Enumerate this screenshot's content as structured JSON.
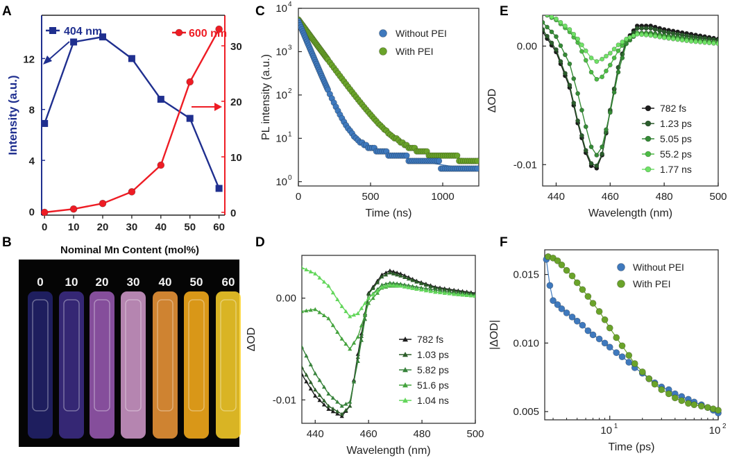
{
  "panel_labels": {
    "A": "A",
    "B": "B",
    "C": "C",
    "D": "D",
    "E": "E",
    "F": "F"
  },
  "photo": {
    "title": "Nominal Mn Content (mol%)",
    "vials": [
      {
        "label": "0",
        "color": "#23236e"
      },
      {
        "label": "10",
        "color": "#3e2e88"
      },
      {
        "label": "20",
        "color": "#9c5cb6"
      },
      {
        "label": "30",
        "color": "#d59ccf"
      },
      {
        "label": "40",
        "color": "#f39a3a"
      },
      {
        "label": "50",
        "color": "#ffb21c"
      },
      {
        "label": "60",
        "color": "#ffd32a"
      }
    ]
  },
  "colors": {
    "blue": "#1f2f8f",
    "red": "#ee1c24",
    "sky": "#3f79bd",
    "green": "#6aa32a",
    "frame": "#333333"
  },
  "chart_data": [
    {
      "id": "A",
      "type": "line",
      "xlabel": "Nominal Mn Content (mol%)",
      "ylabel": "Intensity (a.u.)",
      "xlim": [
        -1,
        62
      ],
      "ylim": [
        -0.3,
        15.4
      ],
      "y2lim": [
        -0.5,
        35.5
      ],
      "xticks": [
        0,
        10,
        20,
        30,
        40,
        50,
        60
      ],
      "yticks": [
        0,
        4,
        8,
        12
      ],
      "y2ticks": [
        0,
        10,
        20,
        30
      ],
      "series": [
        {
          "name": "404 nm",
          "axis": "left",
          "color": "#1f2f8f",
          "marker": "square",
          "x": [
            0,
            10,
            20,
            30,
            40,
            50,
            60
          ],
          "values": [
            6.9,
            13.3,
            13.7,
            12.0,
            8.8,
            7.3,
            1.8
          ]
        },
        {
          "name": "600 nm",
          "axis": "right",
          "color": "#ee1c24",
          "marker": "circle",
          "x": [
            0,
            10,
            20,
            30,
            40,
            50,
            60
          ],
          "values": [
            0,
            0.6,
            1.6,
            3.7,
            8.5,
            23.5,
            33.0
          ]
        }
      ]
    },
    {
      "id": "C",
      "type": "scatter",
      "xlabel": "Time (ns)",
      "ylabel": "PL intensity (a.u.)",
      "xlim": [
        0,
        1250
      ],
      "ylog": true,
      "ylim_exp": [
        -0.1,
        4
      ],
      "xticks": [
        0,
        500,
        1000
      ],
      "yticks_exp": [
        0,
        1,
        2,
        3,
        4
      ],
      "yticklabels": [
        "10",
        "10",
        "10",
        "10",
        "10"
      ],
      "yticksup": [
        "0",
        "1",
        "2",
        "3",
        "4"
      ],
      "series": [
        {
          "name": "Without PEI",
          "color": "#3f79bd",
          "tau": 55,
          "A": 5000,
          "floor": 1.2
        },
        {
          "name": "With PEI",
          "color": "#6aa32a",
          "tau": 95,
          "A": 5500,
          "floor": 2.5
        }
      ]
    },
    {
      "id": "D",
      "type": "line",
      "xlabel": "Wavelength (nm)",
      "ylabel": "ΔOD",
      "xlim": [
        435,
        500
      ],
      "ylim": [
        -0.0123,
        0.0042
      ],
      "xticks": [
        440,
        460,
        480,
        500
      ],
      "yticks": [
        0.0,
        -0.01
      ],
      "yticklabels": [
        "0.00",
        "-0.01"
      ],
      "series": [
        {
          "name": "782  fs",
          "color": "#1c1c1c",
          "marker": "triangle",
          "x": [
            435,
            440,
            445,
            450,
            453,
            456,
            460,
            465,
            468,
            472,
            478,
            485,
            492,
            500
          ],
          "values": [
            -0.0075,
            -0.0096,
            -0.0109,
            -0.0116,
            -0.0106,
            -0.0055,
            0.0005,
            0.0023,
            0.0027,
            0.0024,
            0.0017,
            0.0011,
            0.0008,
            0.0005
          ]
        },
        {
          "name": "1.03 ps",
          "color": "#2d5e2a",
          "marker": "triangle",
          "x": [
            435,
            440,
            445,
            450,
            453,
            456,
            460,
            465,
            468,
            472,
            478,
            485,
            492,
            500
          ],
          "values": [
            -0.0068,
            -0.009,
            -0.0106,
            -0.0114,
            -0.0106,
            -0.0058,
            0.0004,
            0.0021,
            0.0025,
            0.0022,
            0.0016,
            0.001,
            0.0007,
            0.0004
          ]
        },
        {
          "name": "5.82 ps",
          "color": "#37823b",
          "marker": "triangle",
          "x": [
            435,
            440,
            445,
            450,
            453,
            456,
            460,
            465,
            468,
            472,
            478,
            485,
            492,
            500
          ],
          "values": [
            -0.0048,
            -0.0074,
            -0.0094,
            -0.0106,
            -0.0102,
            -0.0062,
            0.0,
            0.0013,
            0.0015,
            0.0014,
            0.0011,
            0.0008,
            0.0005,
            0.0003
          ]
        },
        {
          "name": "51.6 ps",
          "color": "#45a33e",
          "marker": "triangle",
          "x": [
            435,
            440,
            445,
            450,
            453,
            456,
            460,
            465,
            468,
            472,
            478,
            485,
            492,
            500
          ],
          "values": [
            -0.0013,
            -0.0011,
            -0.002,
            -0.004,
            -0.005,
            -0.0038,
            -0.0005,
            0.001,
            0.0012,
            0.0012,
            0.0009,
            0.0006,
            0.0004,
            0.0002
          ]
        },
        {
          "name": "1.04 ns",
          "color": "#62d65a",
          "marker": "triangle",
          "x": [
            435,
            440,
            445,
            450,
            453,
            456,
            460,
            465,
            468,
            472,
            478,
            485,
            492,
            500
          ],
          "values": [
            0.003,
            0.0024,
            0.0012,
            -0.0008,
            -0.0018,
            -0.0015,
            0.0,
            0.0011,
            0.0013,
            0.0012,
            0.0009,
            0.0006,
            0.0004,
            0.0002
          ]
        }
      ]
    },
    {
      "id": "E",
      "type": "line",
      "xlabel": "Wavelength (nm)",
      "ylabel": "ΔOD",
      "xlim": [
        435,
        500
      ],
      "ylim": [
        -0.0118,
        0.0026
      ],
      "xticks": [
        440,
        460,
        480,
        500
      ],
      "yticks": [
        0.0,
        -0.01
      ],
      "yticklabels": [
        "0.00",
        "-0.01"
      ],
      "series": [
        {
          "name": "782  fs",
          "color": "#1c1c1c",
          "marker": "circle",
          "x": [
            435,
            440,
            445,
            448,
            451,
            453,
            455,
            457,
            460,
            463,
            466,
            470,
            475,
            480,
            490,
            500
          ],
          "values": [
            0.0012,
            -0.0005,
            -0.0035,
            -0.0065,
            -0.009,
            -0.0101,
            -0.0103,
            -0.0092,
            -0.0055,
            -0.0018,
            0.0005,
            0.0017,
            0.0017,
            0.0014,
            0.001,
            0.0006
          ]
        },
        {
          "name": "1.23 ps",
          "color": "#2b5d2c",
          "marker": "circle",
          "x": [
            435,
            440,
            445,
            448,
            451,
            453,
            455,
            457,
            460,
            463,
            466,
            470,
            475,
            480,
            490,
            500
          ],
          "values": [
            0.0014,
            -0.0003,
            -0.0033,
            -0.0063,
            -0.0088,
            -0.0099,
            -0.0101,
            -0.0091,
            -0.0054,
            -0.0018,
            0.0004,
            0.0015,
            0.0015,
            0.0012,
            0.0008,
            0.0005
          ]
        },
        {
          "name": "5.05 ps",
          "color": "#358a36",
          "marker": "circle",
          "x": [
            435,
            440,
            445,
            448,
            451,
            453,
            455,
            457,
            460,
            463,
            466,
            470,
            475,
            480,
            490,
            500
          ],
          "values": [
            0.002,
            0.0008,
            -0.0015,
            -0.004,
            -0.0068,
            -0.0085,
            -0.0092,
            -0.0085,
            -0.0056,
            -0.0022,
            0.0002,
            0.0011,
            0.0011,
            0.0009,
            0.0006,
            0.0003
          ]
        },
        {
          "name": "55.2 ps",
          "color": "#4cbb44",
          "marker": "circle",
          "x": [
            435,
            440,
            445,
            448,
            451,
            453,
            455,
            457,
            460,
            463,
            466,
            470,
            475,
            480,
            490,
            500
          ],
          "values": [
            0.0028,
            0.0022,
            0.0012,
            0.0003,
            -0.0012,
            -0.0022,
            -0.0028,
            -0.0026,
            -0.0016,
            -0.0004,
            0.0005,
            0.0011,
            0.001,
            0.0008,
            0.0005,
            0.0003
          ]
        },
        {
          "name": "1.77 ns",
          "color": "#6fe266",
          "marker": "circle",
          "x": [
            435,
            440,
            445,
            448,
            451,
            453,
            455,
            457,
            460,
            463,
            466,
            470,
            475,
            480,
            490,
            500
          ],
          "values": [
            0.0028,
            0.0023,
            0.0014,
            0.0006,
            -0.0004,
            -0.001,
            -0.0013,
            -0.0011,
            -0.0006,
            0.0001,
            0.0006,
            0.001,
            0.0009,
            0.0007,
            0.0004,
            0.0002
          ]
        }
      ]
    },
    {
      "id": "F",
      "type": "scatter",
      "xlabel": "Time (ps)",
      "ylabel": "|ΔOD|",
      "xlog": true,
      "xlim_exp": [
        0.4,
        2.0
      ],
      "ylim": [
        0.0044,
        0.0168
      ],
      "xticks_exp": [
        1,
        2
      ],
      "xticklabels": [
        "10",
        "10"
      ],
      "xticksup": [
        "1",
        "2"
      ],
      "yticks": [
        0.005,
        0.01,
        0.015
      ],
      "yticklabels": [
        "0.005",
        "0.010",
        "0.015"
      ],
      "series": [
        {
          "name": "Without PEI",
          "color": "#3f79bd",
          "x": [
            2.6,
            2.8,
            3,
            3.3,
            3.6,
            4,
            4.5,
            5,
            5.6,
            6.3,
            7,
            8,
            9,
            10,
            11.5,
            13,
            15,
            17,
            20,
            23,
            26,
            30,
            35,
            40,
            46,
            53,
            60,
            70,
            80,
            90,
            100
          ],
          "values": [
            0.0161,
            0.0142,
            0.0131,
            0.0128,
            0.0125,
            0.0122,
            0.0119,
            0.0116,
            0.0113,
            0.0109,
            0.0106,
            0.0103,
            0.01,
            0.0097,
            0.0093,
            0.009,
            0.0086,
            0.0082,
            0.0078,
            0.0074,
            0.0071,
            0.0068,
            0.0066,
            0.0063,
            0.0061,
            0.0059,
            0.0057,
            0.0055,
            0.0053,
            0.0051,
            0.0049
          ]
        },
        {
          "name": "With PEI",
          "color": "#6aa32a",
          "x": [
            2.7,
            3,
            3.3,
            3.6,
            4,
            4.5,
            5,
            5.6,
            6.3,
            7,
            8,
            9,
            10,
            11.5,
            13,
            15,
            17,
            20,
            23,
            26,
            30,
            35,
            40,
            46,
            53,
            60,
            70,
            80,
            90,
            100
          ],
          "values": [
            0.0163,
            0.0162,
            0.016,
            0.0157,
            0.0153,
            0.0149,
            0.0144,
            0.0139,
            0.0134,
            0.0129,
            0.0123,
            0.0117,
            0.0111,
            0.0104,
            0.0098,
            0.0091,
            0.0085,
            0.0079,
            0.0074,
            0.007,
            0.0066,
            0.0063,
            0.006,
            0.0058,
            0.0056,
            0.0055,
            0.0054,
            0.0053,
            0.0052,
            0.0051
          ]
        }
      ]
    }
  ]
}
